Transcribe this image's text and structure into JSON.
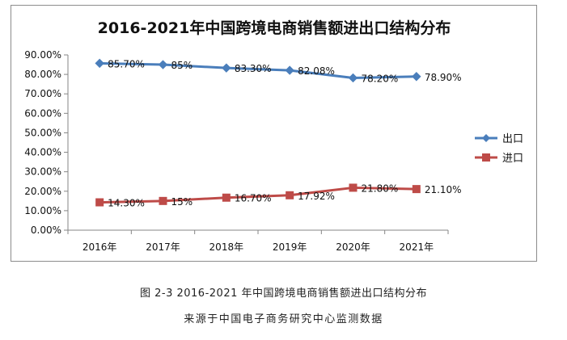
{
  "chart_data": {
    "type": "line",
    "title": "2016-2021年中国跨境电商销售额进出口结构分布",
    "categories": [
      "2016年",
      "2017年",
      "2018年",
      "2019年",
      "2020年",
      "2021年"
    ],
    "y_ticks": [
      "0.00%",
      "10.00%",
      "20.00%",
      "30.00%",
      "40.00%",
      "50.00%",
      "60.00%",
      "70.00%",
      "80.00%",
      "90.00%"
    ],
    "ylim": [
      0,
      90
    ],
    "grid": false,
    "legend_position": "right",
    "series": [
      {
        "name": "出口",
        "color": "#4a7ebb",
        "marker": "diamond",
        "values": [
          85.7,
          85,
          83.3,
          82.08,
          78.2,
          78.9
        ],
        "labels": [
          "85.70%",
          "85%",
          "83.30%",
          "82.08%",
          "78.20%",
          "78.90%"
        ]
      },
      {
        "name": "进口",
        "color": "#be4b48",
        "marker": "square",
        "values": [
          14.3,
          15,
          16.7,
          17.92,
          21.8,
          21.1
        ],
        "labels": [
          "14.30%",
          "15%",
          "16.70%",
          "17.92%",
          "21.80%",
          "21.10%"
        ]
      }
    ]
  },
  "caption": {
    "figure_title": "图 2-3 2016-2021 年中国跨境电商销售额进出口结构分布",
    "source": "来源于中国电子商务研究中心监测数据"
  }
}
